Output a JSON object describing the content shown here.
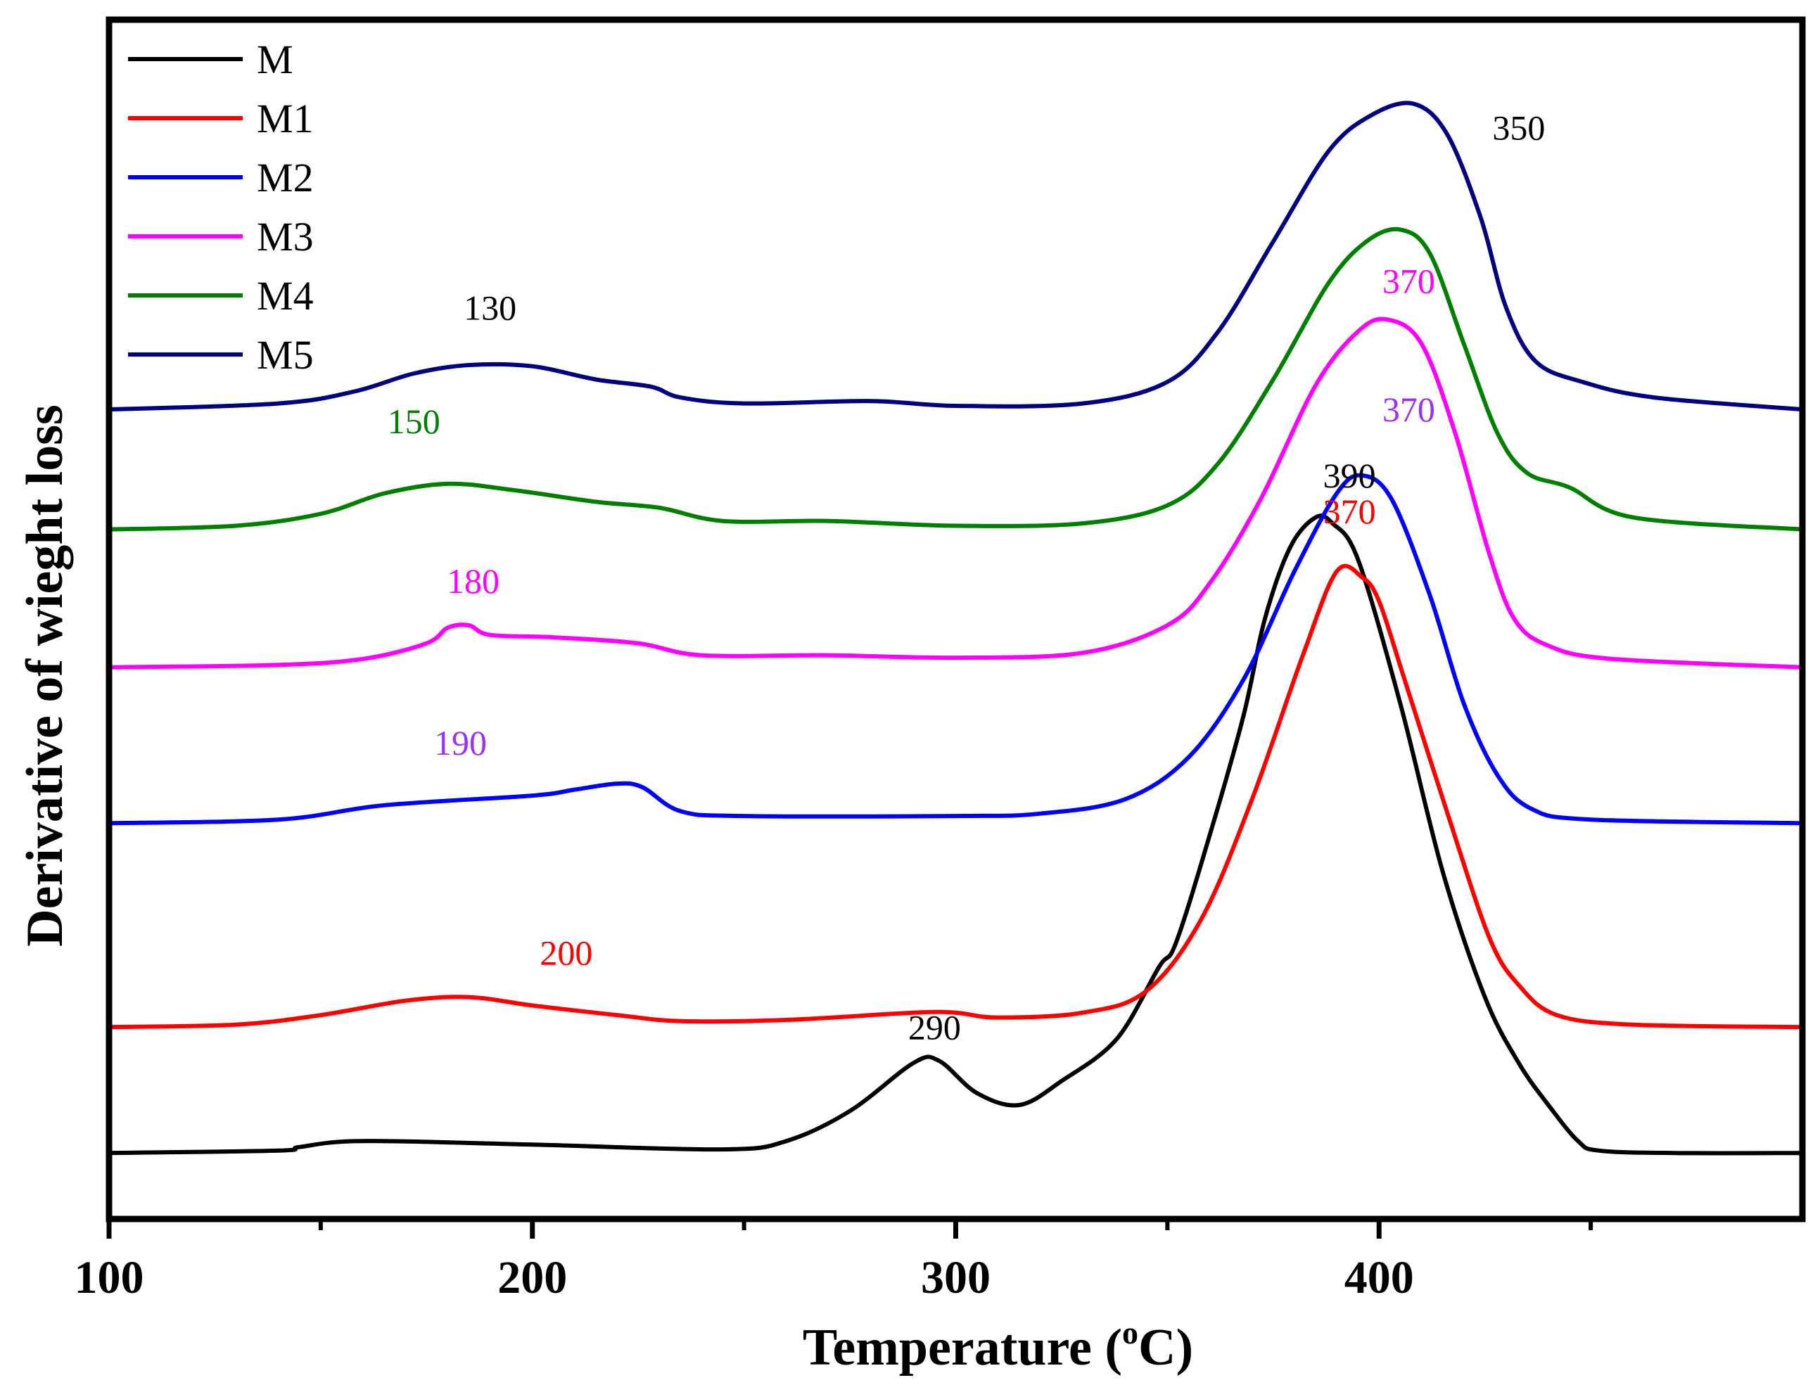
{
  "chart_data": {
    "type": "line",
    "title": "",
    "xlabel": "Temperature (",
    "xlabel_sup": "o",
    "xlabel_tail": "C)",
    "ylabel": "Derivative of wieght loss",
    "xlim": [
      100,
      500
    ],
    "ylim": [
      0,
      10
    ],
    "x_ticks": [
      100,
      200,
      300,
      400
    ],
    "x_minor_ticks": [
      150,
      250,
      350,
      450
    ],
    "y_tick_labels": false,
    "grid": false,
    "legend_position": "top-left",
    "series": [
      {
        "name": "M",
        "color": "#000000",
        "points": [
          [
            100,
            0.55
          ],
          [
            140,
            0.57
          ],
          [
            145,
            0.6
          ],
          [
            160,
            0.65
          ],
          [
            200,
            0.62
          ],
          [
            245,
            0.58
          ],
          [
            260,
            0.65
          ],
          [
            275,
            0.9
          ],
          [
            290,
            1.3
          ],
          [
            296,
            1.32
          ],
          [
            305,
            1.05
          ],
          [
            315,
            0.95
          ],
          [
            325,
            1.15
          ],
          [
            338,
            1.5
          ],
          [
            348,
            2.1
          ],
          [
            352,
            2.3
          ],
          [
            360,
            3.2
          ],
          [
            368,
            4.2
          ],
          [
            373,
            5.0
          ],
          [
            379,
            5.6
          ],
          [
            385,
            5.85
          ],
          [
            389,
            5.8
          ],
          [
            395,
            5.5
          ],
          [
            405,
            4.3
          ],
          [
            415,
            2.9
          ],
          [
            425,
            1.85
          ],
          [
            433,
            1.3
          ],
          [
            440,
            0.95
          ],
          [
            447,
            0.65
          ],
          [
            452,
            0.57
          ],
          [
            470,
            0.55
          ],
          [
            500,
            0.55
          ]
        ]
      },
      {
        "name": "M1",
        "color": "#ff0000",
        "points": [
          [
            100,
            1.6
          ],
          [
            130,
            1.62
          ],
          [
            150,
            1.7
          ],
          [
            170,
            1.82
          ],
          [
            185,
            1.85
          ],
          [
            200,
            1.78
          ],
          [
            220,
            1.7
          ],
          [
            235,
            1.65
          ],
          [
            260,
            1.66
          ],
          [
            290,
            1.72
          ],
          [
            300,
            1.72
          ],
          [
            310,
            1.68
          ],
          [
            330,
            1.72
          ],
          [
            345,
            1.9
          ],
          [
            358,
            2.5
          ],
          [
            370,
            3.5
          ],
          [
            382,
            4.7
          ],
          [
            390,
            5.4
          ],
          [
            396,
            5.35
          ],
          [
            400,
            5.15
          ],
          [
            406,
            4.5
          ],
          [
            416,
            3.4
          ],
          [
            426,
            2.35
          ],
          [
            433,
            1.95
          ],
          [
            442,
            1.7
          ],
          [
            460,
            1.62
          ],
          [
            500,
            1.6
          ]
        ]
      },
      {
        "name": "M2",
        "color": "#0000ff",
        "points": [
          [
            100,
            3.3
          ],
          [
            140,
            3.33
          ],
          [
            165,
            3.45
          ],
          [
            200,
            3.53
          ],
          [
            210,
            3.58
          ],
          [
            220,
            3.63
          ],
          [
            226,
            3.6
          ],
          [
            235,
            3.4
          ],
          [
            250,
            3.36
          ],
          [
            300,
            3.36
          ],
          [
            320,
            3.38
          ],
          [
            340,
            3.5
          ],
          [
            355,
            3.85
          ],
          [
            368,
            4.5
          ],
          [
            380,
            5.4
          ],
          [
            390,
            6.05
          ],
          [
            396,
            6.2
          ],
          [
            403,
            6.0
          ],
          [
            412,
            5.2
          ],
          [
            420,
            4.3
          ],
          [
            428,
            3.7
          ],
          [
            436,
            3.42
          ],
          [
            450,
            3.33
          ],
          [
            500,
            3.3
          ]
        ]
      },
      {
        "name": "M3",
        "color": "#ff00ff",
        "points": [
          [
            100,
            4.6
          ],
          [
            140,
            4.62
          ],
          [
            160,
            4.67
          ],
          [
            175,
            4.8
          ],
          [
            180,
            4.93
          ],
          [
            185,
            4.95
          ],
          [
            190,
            4.87
          ],
          [
            205,
            4.85
          ],
          [
            225,
            4.8
          ],
          [
            240,
            4.7
          ],
          [
            270,
            4.7
          ],
          [
            300,
            4.68
          ],
          [
            330,
            4.72
          ],
          [
            350,
            4.95
          ],
          [
            360,
            5.3
          ],
          [
            372,
            6.0
          ],
          [
            385,
            6.95
          ],
          [
            395,
            7.4
          ],
          [
            402,
            7.5
          ],
          [
            410,
            7.3
          ],
          [
            418,
            6.55
          ],
          [
            426,
            5.55
          ],
          [
            432,
            5.0
          ],
          [
            440,
            4.78
          ],
          [
            455,
            4.67
          ],
          [
            500,
            4.6
          ]
        ]
      },
      {
        "name": "M4",
        "color": "#008000",
        "points": [
          [
            100,
            5.75
          ],
          [
            130,
            5.78
          ],
          [
            150,
            5.88
          ],
          [
            165,
            6.05
          ],
          [
            180,
            6.13
          ],
          [
            195,
            6.08
          ],
          [
            215,
            5.98
          ],
          [
            230,
            5.93
          ],
          [
            245,
            5.82
          ],
          [
            270,
            5.82
          ],
          [
            300,
            5.78
          ],
          [
            330,
            5.8
          ],
          [
            350,
            5.95
          ],
          [
            362,
            6.3
          ],
          [
            375,
            7.0
          ],
          [
            388,
            7.8
          ],
          [
            397,
            8.15
          ],
          [
            405,
            8.25
          ],
          [
            412,
            8.05
          ],
          [
            420,
            7.3
          ],
          [
            428,
            6.55
          ],
          [
            435,
            6.22
          ],
          [
            445,
            6.1
          ],
          [
            460,
            5.85
          ],
          [
            500,
            5.75
          ]
        ]
      },
      {
        "name": "M5",
        "color": "#000080",
        "points": [
          [
            100,
            6.75
          ],
          [
            140,
            6.8
          ],
          [
            158,
            6.9
          ],
          [
            172,
            7.05
          ],
          [
            185,
            7.12
          ],
          [
            200,
            7.11
          ],
          [
            215,
            7.0
          ],
          [
            228,
            6.94
          ],
          [
            235,
            6.85
          ],
          [
            250,
            6.8
          ],
          [
            280,
            6.82
          ],
          [
            300,
            6.78
          ],
          [
            330,
            6.8
          ],
          [
            350,
            6.98
          ],
          [
            362,
            7.4
          ],
          [
            375,
            8.15
          ],
          [
            388,
            8.9
          ],
          [
            398,
            9.2
          ],
          [
            408,
            9.3
          ],
          [
            416,
            9.05
          ],
          [
            424,
            8.35
          ],
          [
            430,
            7.6
          ],
          [
            437,
            7.15
          ],
          [
            448,
            6.98
          ],
          [
            465,
            6.85
          ],
          [
            500,
            6.75
          ]
        ]
      }
    ],
    "annotations": [
      {
        "text": "130",
        "x": 190,
        "y": 7.5,
        "color": "#000000"
      },
      {
        "text": "150",
        "x": 172,
        "y": 6.55,
        "color": "#008000"
      },
      {
        "text": "180",
        "x": 186,
        "y": 5.22,
        "color": "#ff00ff"
      },
      {
        "text": "190",
        "x": 183,
        "y": 3.87,
        "color": "#9b30ff"
      },
      {
        "text": "200",
        "x": 208,
        "y": 2.12,
        "color": "#ff0000"
      },
      {
        "text": "290",
        "x": 295,
        "y": 1.5,
        "color": "#000000"
      },
      {
        "text": "390",
        "x": 393,
        "y": 6.1,
        "color": "#000000"
      },
      {
        "text": "370",
        "x": 393,
        "y": 5.8,
        "color": "#ff0000"
      },
      {
        "text": "370",
        "x": 407,
        "y": 6.65,
        "color": "#9b30ff"
      },
      {
        "text": "370",
        "x": 407,
        "y": 7.72,
        "color": "#ff00ff"
      },
      {
        "text": "350",
        "x": 433,
        "y": 9.0,
        "color": "#000000"
      }
    ]
  }
}
